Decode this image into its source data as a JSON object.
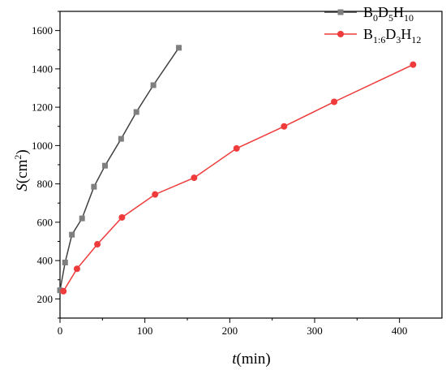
{
  "chart_data": {
    "type": "line",
    "xlabel": {
      "var": "t",
      "rest": "(min)"
    },
    "ylabel": {
      "var": "S",
      "pre": "(cm",
      "sup": "2",
      "post": ")"
    },
    "xlim": [
      0,
      450
    ],
    "ylim": [
      100,
      1700
    ],
    "xticks": [
      0,
      100,
      200,
      300,
      400
    ],
    "yticks": [
      200,
      400,
      600,
      800,
      1000,
      1200,
      1400,
      1600
    ],
    "grid": false,
    "legend_position": "top-right",
    "series": [
      {
        "name_parts": {
          "b": "B",
          "b_sub": "0",
          "d": "D",
          "d_sub": "5",
          "h": "H",
          "h_sub": "10"
        },
        "color": "#404040",
        "marker": "square",
        "x": [
          0,
          6,
          14,
          26,
          40,
          53,
          72,
          90,
          110,
          140
        ],
        "y": [
          245,
          390,
          535,
          620,
          785,
          895,
          1035,
          1175,
          1315,
          1510
        ]
      },
      {
        "name_parts": {
          "b": "B",
          "b_sub": "1:6",
          "d": "D",
          "d_sub": "3",
          "h": "H",
          "h_sub": "12"
        },
        "color": "#ef3b3b",
        "marker": "circle",
        "x": [
          4,
          20,
          44,
          73,
          112,
          158,
          208,
          264,
          323,
          416
        ],
        "y": [
          240,
          357,
          485,
          625,
          745,
          832,
          985,
          1100,
          1228,
          1422
        ]
      }
    ]
  }
}
